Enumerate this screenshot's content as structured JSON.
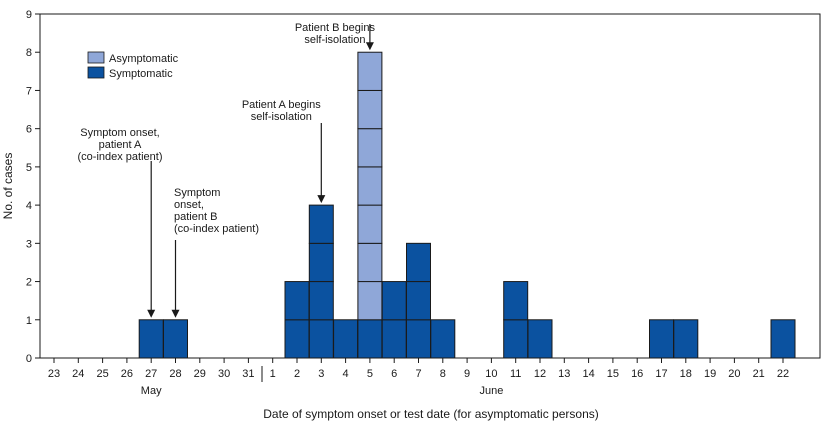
{
  "chart_data": {
    "type": "bar",
    "stacked": true,
    "xlabel": "Date of symptom onset or test date (for asymptomatic persons)",
    "ylabel": "No. of cases",
    "ylim": [
      0,
      9
    ],
    "yticks": [
      0,
      1,
      2,
      3,
      4,
      5,
      6,
      7,
      8,
      9
    ],
    "grid": false,
    "legend_position": "top-left",
    "categories": [
      "23",
      "24",
      "25",
      "26",
      "27",
      "28",
      "29",
      "30",
      "31",
      "1",
      "2",
      "3",
      "4",
      "5",
      "6",
      "7",
      "8",
      "9",
      "10",
      "11",
      "12",
      "13",
      "14",
      "15",
      "16",
      "17",
      "18",
      "19",
      "20",
      "21",
      "22"
    ],
    "months": [
      {
        "label": "May",
        "category": "27"
      },
      {
        "label": "June",
        "category": "10"
      }
    ],
    "series": [
      {
        "name": "Symptomatic",
        "color": "#0b52a0",
        "values": [
          0,
          0,
          0,
          0,
          1,
          1,
          0,
          0,
          0,
          0,
          2,
          4,
          1,
          1,
          2,
          3,
          1,
          0,
          0,
          2,
          1,
          0,
          0,
          0,
          0,
          1,
          1,
          0,
          0,
          0,
          1
        ]
      },
      {
        "name": "Asymptomatic",
        "color": "#8fa7d8",
        "values": [
          0,
          0,
          0,
          0,
          0,
          0,
          0,
          0,
          0,
          0,
          0,
          0,
          0,
          7,
          0,
          0,
          0,
          0,
          0,
          0,
          0,
          0,
          0,
          0,
          0,
          0,
          0,
          0,
          0,
          0,
          0
        ]
      }
    ],
    "annotations": [
      {
        "category": "27",
        "lines": [
          "Symptom onset,",
          "patient A",
          "(co-index patient)"
        ]
      },
      {
        "category": "28",
        "lines": [
          "Symptom",
          "onset,",
          "patient B",
          "(co-index patient)"
        ]
      },
      {
        "category": "3",
        "lines": [
          "Patient A begins",
          "self-isolation"
        ]
      },
      {
        "category": "5",
        "lines": [
          "Patient B begins",
          "self-isolation"
        ]
      }
    ]
  }
}
